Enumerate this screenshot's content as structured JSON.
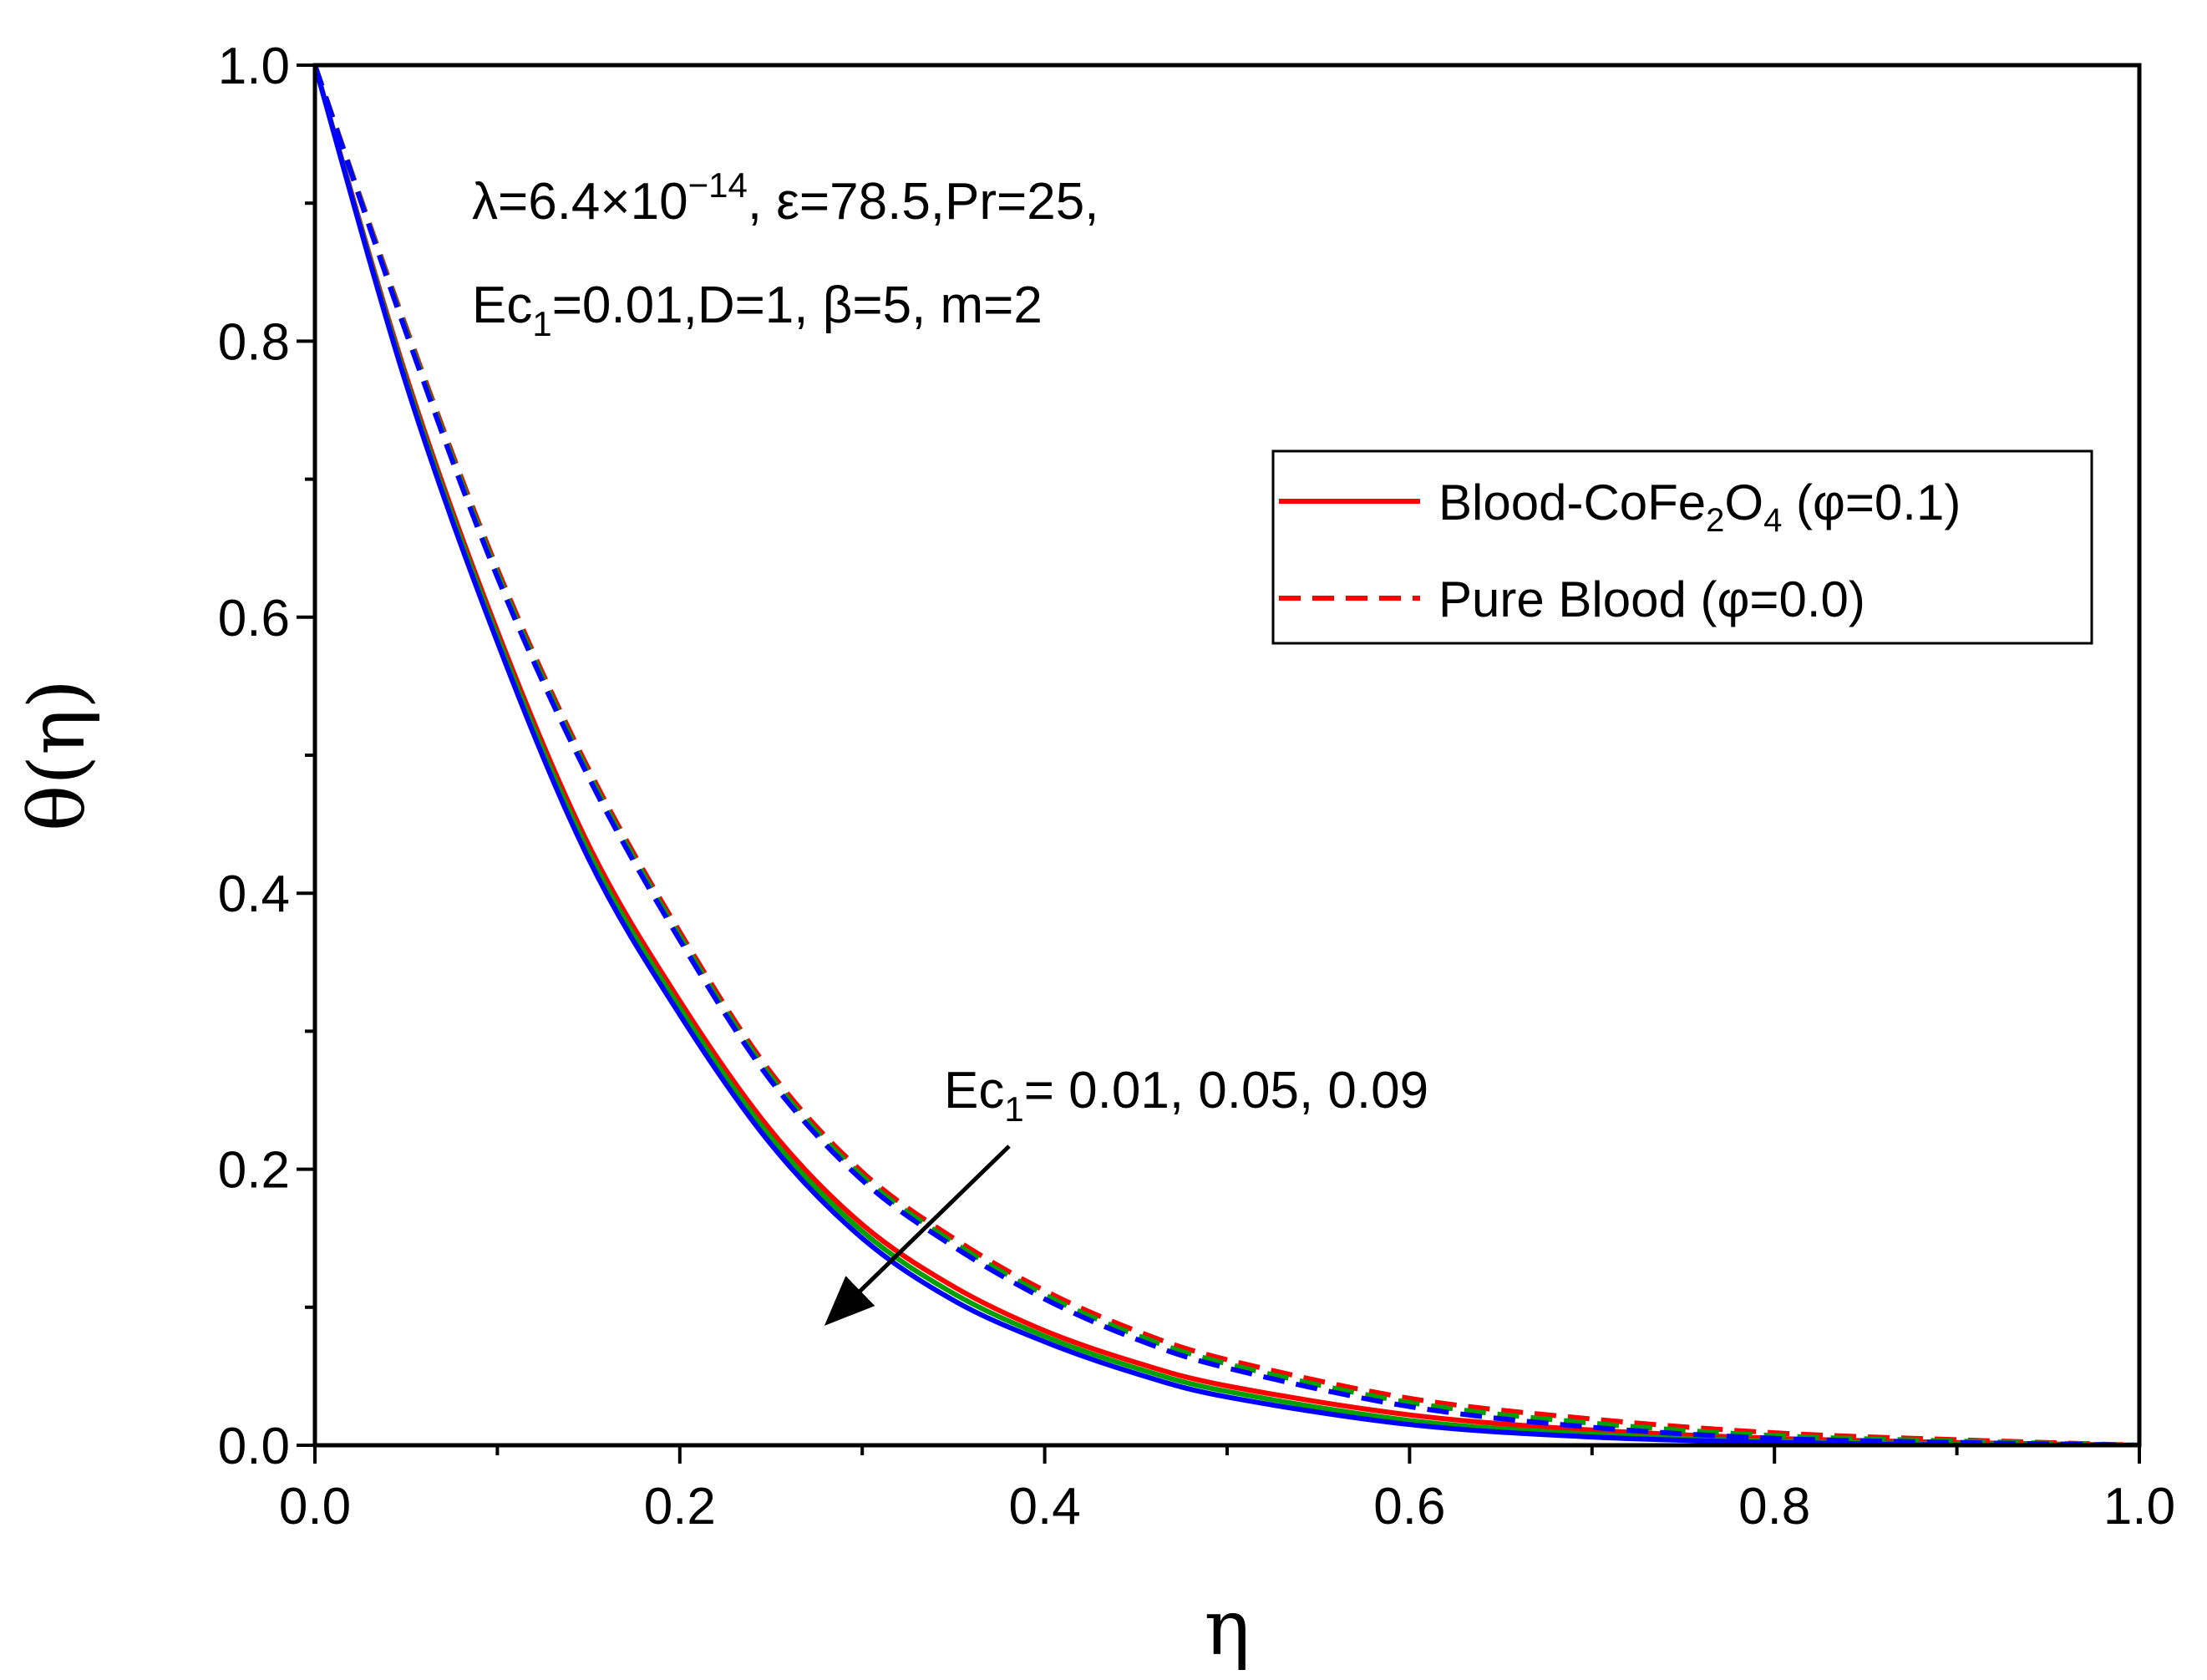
{
  "chart_data": {
    "type": "line",
    "title": "",
    "xlabel": "η",
    "ylabel": "θ(η)",
    "xlim": [
      0.0,
      1.0
    ],
    "ylim": [
      0.0,
      1.0
    ],
    "xticks": [
      "0.0",
      "0.2",
      "0.4",
      "0.6",
      "0.8",
      "1.0"
    ],
    "yticks": [
      "0.0",
      "0.2",
      "0.4",
      "0.6",
      "0.8",
      "1.0"
    ],
    "x": [
      0.0,
      0.05,
      0.1,
      0.15,
      0.2,
      0.25,
      0.3,
      0.35,
      0.4,
      0.45,
      0.5,
      0.6,
      0.7,
      0.8,
      0.9,
      1.0
    ],
    "series": [
      {
        "name": "Blood-CoFe2O4 (φ=0.1), Ec1=0.01",
        "style": "solid",
        "color": "#ff0000",
        "values": [
          1.0,
          0.775,
          0.59,
          0.435,
          0.322,
          0.228,
          0.16,
          0.115,
          0.083,
          0.06,
          0.043,
          0.022,
          0.011,
          0.005,
          0.002,
          0.0
        ]
      },
      {
        "name": "Blood-CoFe2O4 (φ=0.1), Ec1=0.05",
        "style": "solid",
        "color": "#00a000",
        "values": [
          1.0,
          0.772,
          0.586,
          0.43,
          0.317,
          0.223,
          0.155,
          0.11,
          0.079,
          0.056,
          0.039,
          0.018,
          0.008,
          0.003,
          0.001,
          0.0
        ]
      },
      {
        "name": "Blood-CoFe2O4 (φ=0.1), Ec1=0.09",
        "style": "solid",
        "color": "#0000ff",
        "values": [
          1.0,
          0.769,
          0.582,
          0.425,
          0.312,
          0.218,
          0.15,
          0.105,
          0.075,
          0.052,
          0.035,
          0.015,
          0.006,
          0.002,
          0.0,
          0.0
        ]
      },
      {
        "name": "Pure Blood (φ=0.0), Ec1=0.01",
        "style": "dashed",
        "color": "#ff0000",
        "values": [
          1.0,
          0.81,
          0.635,
          0.49,
          0.372,
          0.27,
          0.198,
          0.15,
          0.112,
          0.083,
          0.062,
          0.034,
          0.019,
          0.009,
          0.004,
          0.0
        ]
      },
      {
        "name": "Pure Blood (φ=0.0), Ec1=0.05",
        "style": "dashed",
        "color": "#00a000",
        "values": [
          1.0,
          0.808,
          0.632,
          0.487,
          0.369,
          0.267,
          0.195,
          0.147,
          0.109,
          0.08,
          0.059,
          0.031,
          0.016,
          0.007,
          0.003,
          0.0
        ]
      },
      {
        "name": "Pure Blood (φ=0.0), Ec1=0.09",
        "style": "dashed",
        "color": "#0000ff",
        "values": [
          1.0,
          0.806,
          0.629,
          0.484,
          0.366,
          0.264,
          0.192,
          0.144,
          0.106,
          0.077,
          0.056,
          0.028,
          0.013,
          0.005,
          0.002,
          0.0
        ]
      }
    ],
    "legend": {
      "placement": "right-middle",
      "entries": [
        {
          "prefix": "Blood-CoFe",
          "sub1": "2",
          "mid": "O",
          "sub2": "4",
          "suffix": " (φ=0.1)",
          "style": "solid",
          "color": "#ff0000"
        },
        {
          "prefix": "Pure Blood (φ=0.0)",
          "style": "dashed",
          "color": "#ff0000"
        }
      ]
    },
    "annotations": {
      "params_line1": {
        "lambda": "λ=6.4×10",
        "exp": "−14",
        "rest": ", ε=78.5,Pr=25,"
      },
      "params_line2": {
        "a": "Ec",
        "sub": "1",
        "b": "=0.01,D=1, β=5, m=2"
      },
      "ec_label": {
        "a": "Ec",
        "sub": "1",
        "b": "= 0.01, 0.05, 0.09"
      },
      "arrow_direction": "down-left, increasing Ec1"
    }
  }
}
